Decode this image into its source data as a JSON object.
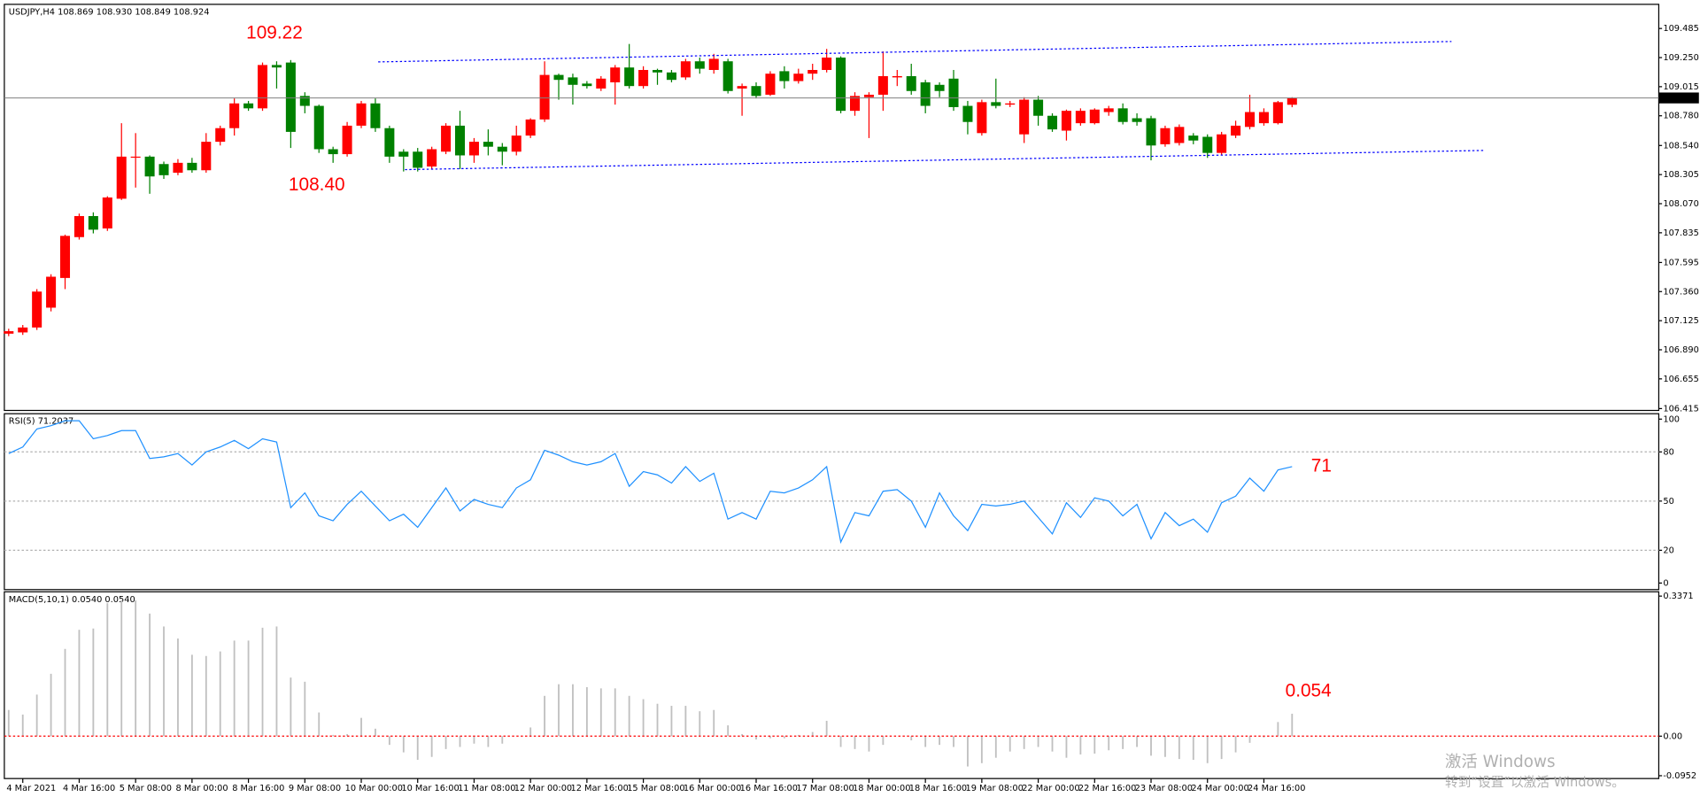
{
  "chart_data": [
    {
      "type": "candlestick",
      "title": "USDJPY,H4  108.869 108.930 108.849 108.924",
      "categories": [
        null,
        "4 Mar 2021",
        null,
        null,
        null,
        "4 Mar 16:00",
        null,
        null,
        null,
        "5 Mar 08:00",
        null,
        null,
        null,
        "8 Mar 00:00",
        null,
        null,
        null,
        "8 Mar 16:00",
        null,
        null,
        null,
        "9 Mar 08:00",
        null,
        null,
        null,
        "10 Mar 00:00",
        null,
        null,
        null,
        "10 Mar 16:00",
        null,
        null,
        null,
        "11 Mar 08:00",
        null,
        null,
        null,
        "12 Mar 00:00",
        null,
        null,
        null,
        "12 Mar 16:00",
        null,
        null,
        null,
        "15 Mar 08:00",
        null,
        null,
        null,
        "16 Mar 00:00",
        null,
        null,
        null,
        "16 Mar 16:00",
        null,
        null,
        null,
        "17 Mar 08:00",
        null,
        null,
        null,
        "18 Mar 00:00",
        null,
        null,
        null,
        "18 Mar 16:00",
        null,
        null,
        null,
        "19 Mar 08:00",
        null,
        null,
        null,
        "22 Mar 00:00",
        null,
        null,
        null,
        "22 Mar 16:00",
        null,
        null,
        null,
        "23 Mar 08:00",
        null,
        null,
        null,
        "24 Mar 00:00",
        null,
        null,
        null,
        "24 Mar 16:00",
        null,
        null
      ],
      "ohlc": [
        [
          107.02,
          107.06,
          107.0,
          107.04
        ],
        [
          107.03,
          107.09,
          107.01,
          107.07
        ],
        [
          107.07,
          107.38,
          107.05,
          107.36
        ],
        [
          107.23,
          107.5,
          107.2,
          107.48
        ],
        [
          107.47,
          107.82,
          107.38,
          107.81
        ],
        [
          107.8,
          107.99,
          107.78,
          107.97
        ],
        [
          107.97,
          108.0,
          107.83,
          107.86
        ],
        [
          107.87,
          108.13,
          107.85,
          108.12
        ],
        [
          108.11,
          108.72,
          108.1,
          108.45
        ],
        [
          108.45,
          108.64,
          108.2,
          108.45
        ],
        [
          108.45,
          108.46,
          108.15,
          108.29
        ],
        [
          108.39,
          108.41,
          108.27,
          108.3
        ],
        [
          108.32,
          108.43,
          108.3,
          108.4
        ],
        [
          108.4,
          108.44,
          108.32,
          108.34
        ],
        [
          108.34,
          108.64,
          108.32,
          108.57
        ],
        [
          108.57,
          108.7,
          108.54,
          108.68
        ],
        [
          108.68,
          108.92,
          108.62,
          108.88
        ],
        [
          108.88,
          108.9,
          108.82,
          108.84
        ],
        [
          108.84,
          109.21,
          108.82,
          109.19
        ],
        [
          109.19,
          109.22,
          109.0,
          109.17
        ],
        [
          109.21,
          109.23,
          108.52,
          108.65
        ],
        [
          108.94,
          108.97,
          108.8,
          108.86
        ],
        [
          108.86,
          108.87,
          108.48,
          108.51
        ],
        [
          108.51,
          108.53,
          108.4,
          108.47
        ],
        [
          108.47,
          108.73,
          108.45,
          108.7
        ],
        [
          108.7,
          108.9,
          108.68,
          108.88
        ],
        [
          108.88,
          108.92,
          108.65,
          108.68
        ],
        [
          108.68,
          108.7,
          108.4,
          108.45
        ],
        [
          108.49,
          108.51,
          108.33,
          108.45
        ],
        [
          108.49,
          108.52,
          108.33,
          108.36
        ],
        [
          108.37,
          108.53,
          108.35,
          108.51
        ],
        [
          108.49,
          108.72,
          108.47,
          108.7
        ],
        [
          108.7,
          108.82,
          108.35,
          108.46
        ],
        [
          108.46,
          108.6,
          108.4,
          108.57
        ],
        [
          108.57,
          108.67,
          108.46,
          108.53
        ],
        [
          108.53,
          108.56,
          108.38,
          108.49
        ],
        [
          108.49,
          108.7,
          108.46,
          108.62
        ],
        [
          108.62,
          108.76,
          108.6,
          108.75
        ],
        [
          108.75,
          109.22,
          108.73,
          109.11
        ],
        [
          109.11,
          109.12,
          108.91,
          109.07
        ],
        [
          109.09,
          109.12,
          108.87,
          109.03
        ],
        [
          109.04,
          109.06,
          109.0,
          109.02
        ],
        [
          109.0,
          109.1,
          108.98,
          109.08
        ],
        [
          109.05,
          109.19,
          108.87,
          109.17
        ],
        [
          109.17,
          109.36,
          109.0,
          109.02
        ],
        [
          109.02,
          109.18,
          109.0,
          109.15
        ],
        [
          109.15,
          109.16,
          109.03,
          109.13
        ],
        [
          109.13,
          109.15,
          109.05,
          109.07
        ],
        [
          109.09,
          109.24,
          109.07,
          109.22
        ],
        [
          109.22,
          109.25,
          109.12,
          109.16
        ],
        [
          109.15,
          109.28,
          109.12,
          109.24
        ],
        [
          109.22,
          109.24,
          108.96,
          108.98
        ],
        [
          109.0,
          109.04,
          108.78,
          109.02
        ],
        [
          109.02,
          109.05,
          108.92,
          108.94
        ],
        [
          108.95,
          109.14,
          108.94,
          109.12
        ],
        [
          109.14,
          109.18,
          109.0,
          109.06
        ],
        [
          109.06,
          109.16,
          109.04,
          109.12
        ],
        [
          109.12,
          109.2,
          109.07,
          109.15
        ],
        [
          109.15,
          109.32,
          109.13,
          109.25
        ],
        [
          109.25,
          109.26,
          108.8,
          108.82
        ],
        [
          108.82,
          108.97,
          108.78,
          108.94
        ],
        [
          108.93,
          108.97,
          108.6,
          108.95
        ],
        [
          108.95,
          109.3,
          108.82,
          109.1
        ],
        [
          109.09,
          109.15,
          109.02,
          109.1
        ],
        [
          109.1,
          109.2,
          108.95,
          108.98
        ],
        [
          109.05,
          109.07,
          108.8,
          108.86
        ],
        [
          109.03,
          109.05,
          108.93,
          108.98
        ],
        [
          109.08,
          109.15,
          108.82,
          108.85
        ],
        [
          108.86,
          108.9,
          108.63,
          108.73
        ],
        [
          108.64,
          108.91,
          108.62,
          108.89
        ],
        [
          108.89,
          109.08,
          108.84,
          108.86
        ],
        [
          108.87,
          108.9,
          108.85,
          108.88
        ],
        [
          108.63,
          108.93,
          108.56,
          108.91
        ],
        [
          108.91,
          108.94,
          108.7,
          108.78
        ],
        [
          108.78,
          108.8,
          108.65,
          108.67
        ],
        [
          108.66,
          108.83,
          108.58,
          108.82
        ],
        [
          108.72,
          108.84,
          108.7,
          108.82
        ],
        [
          108.72,
          108.84,
          108.71,
          108.83
        ],
        [
          108.81,
          108.86,
          108.78,
          108.84
        ],
        [
          108.84,
          108.88,
          108.71,
          108.73
        ],
        [
          108.76,
          108.8,
          108.7,
          108.73
        ],
        [
          108.76,
          108.78,
          108.42,
          108.54
        ],
        [
          108.55,
          108.7,
          108.53,
          108.68
        ],
        [
          108.56,
          108.71,
          108.54,
          108.69
        ],
        [
          108.62,
          108.64,
          108.55,
          108.58
        ],
        [
          108.61,
          108.63,
          108.44,
          108.48
        ],
        [
          108.48,
          108.65,
          108.46,
          108.63
        ],
        [
          108.62,
          108.74,
          108.6,
          108.7
        ],
        [
          108.69,
          108.95,
          108.67,
          108.81
        ],
        [
          108.72,
          108.84,
          108.7,
          108.81
        ],
        [
          108.72,
          108.9,
          108.71,
          108.89
        ],
        [
          108.869,
          108.93,
          108.849,
          108.924
        ]
      ],
      "up_color": "#ff0000",
      "down_color": "#008000",
      "ylim": [
        106.4,
        109.68
      ],
      "yticks": [
        109.485,
        {
          "value": 109.25,
          "label": "109.250"
        },
        109.015,
        {
          "value": 108.78,
          "label": "108.780"
        },
        {
          "value": 108.54,
          "label": "108.540"
        },
        108.305,
        {
          "value": 108.07,
          "label": "108.070"
        },
        107.835,
        107.595,
        {
          "value": 107.36,
          "label": "107.360"
        },
        107.125,
        {
          "value": 106.89,
          "label": "106.890"
        },
        106.655,
        106.415
      ],
      "last_price": 108.924,
      "trendlines": [
        {
          "x": [
            26.2,
            102.3
          ],
          "y": [
            109.215,
            109.38
          ],
          "color": "#0000ff"
        },
        {
          "x": [
            28.1,
            104.6
          ],
          "y": [
            108.345,
            108.5
          ],
          "color": "#0000ff"
        }
      ],
      "annotations": [
        "109.22",
        "108.40"
      ]
    },
    {
      "type": "line",
      "title": "RSI(5) 71.2037",
      "color": "#1e90ff",
      "values": [
        79,
        83,
        94,
        96,
        99,
        99,
        88,
        90,
        93,
        93,
        76,
        77,
        79,
        72,
        80,
        83,
        87,
        82,
        88,
        86,
        46,
        55,
        41,
        38,
        48,
        56,
        47,
        38,
        42,
        34,
        46,
        58,
        44,
        51,
        48,
        46,
        58,
        63,
        81,
        78,
        74,
        72,
        74,
        79,
        59,
        68,
        66,
        61,
        71,
        62,
        67,
        39,
        43,
        39,
        56,
        55,
        58,
        63,
        71,
        25,
        43,
        41,
        56,
        57,
        50,
        34,
        55,
        41,
        32,
        48,
        47,
        48,
        50,
        40,
        30,
        49,
        40,
        52,
        50,
        41,
        48,
        27,
        43,
        35,
        39,
        31,
        49,
        53,
        64,
        56,
        69,
        71
      ],
      "ylim": [
        -4,
        103.3
      ],
      "yticks": [
        100,
        80,
        50,
        20,
        0
      ],
      "levels": [
        80,
        50,
        20
      ],
      "annotations": [
        "71"
      ]
    },
    {
      "type": "bar",
      "title": "MACD(5,10,1) 0.0540 0.0540",
      "color": "#c0c0c0",
      "signal_color": "#ff0000",
      "values": [
        0.063,
        0.052,
        0.1,
        0.15,
        0.21,
        0.256,
        0.259,
        0.32,
        0.327,
        0.327,
        0.295,
        0.264,
        0.235,
        0.196,
        0.193,
        0.204,
        0.23,
        0.23,
        0.261,
        0.264,
        0.141,
        0.131,
        0.057,
        0.003,
        0.005,
        0.044,
        0.018,
        -0.021,
        -0.039,
        -0.057,
        -0.05,
        -0.031,
        -0.026,
        -0.018,
        -0.026,
        -0.018,
        0,
        0.021,
        0.097,
        0.125,
        0.125,
        0.118,
        0.115,
        0.115,
        0.097,
        0.089,
        0.078,
        0.073,
        0.073,
        0.06,
        0.063,
        0.026,
        0.005,
        -0.008,
        -0.005,
        -0.005,
        0.003,
        0.01,
        0.037,
        -0.026,
        -0.031,
        -0.037,
        -0.021,
        0,
        -0.01,
        -0.026,
        -0.021,
        -0.026,
        -0.073,
        -0.065,
        -0.052,
        -0.037,
        -0.031,
        -0.026,
        -0.037,
        -0.052,
        -0.044,
        -0.042,
        -0.034,
        -0.031,
        -0.026,
        -0.047,
        -0.05,
        -0.055,
        -0.057,
        -0.065,
        -0.055,
        -0.039,
        -0.016,
        -0.003,
        0.034,
        0.054
      ],
      "ylim": [
        -0.102,
        0.3475
      ],
      "yticks": [
        0.3371,
        {
          "value": 0,
          "label": "0.00"
        },
        -0.0952
      ],
      "annotations": [
        "0.054"
      ]
    }
  ],
  "watermark": {
    "line1": "激活 Windows",
    "line2": "转到“设置”以激活 Windows。"
  }
}
